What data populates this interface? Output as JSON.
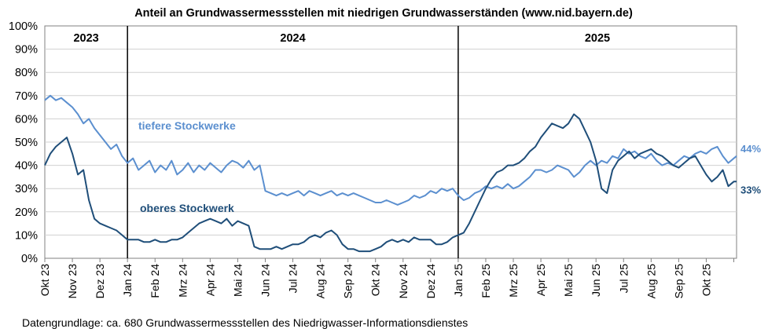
{
  "chart_data": {
    "type": "line",
    "title": "Anteil an Grundwassermessstellen mit niedrigen Grundwasserständen (www.nid.bayern.de)",
    "source": "Datengrundlage: ca. 680 Grundwassermessstellen des Niedrigwasser-Informationsdienstes",
    "xlabel": "",
    "ylabel": "",
    "ylim": [
      0,
      100
    ],
    "y_ticks": [
      "0%",
      "10%",
      "20%",
      "30%",
      "40%",
      "50%",
      "60%",
      "70%",
      "80%",
      "90%",
      "100%"
    ],
    "x_ticks": [
      "Okt 23",
      "Nov 23",
      "Dez 23",
      "Jan 24",
      "Feb 24",
      "Mrz 24",
      "Apr 24",
      "Mai 24",
      "Jun 24",
      "Jul 24",
      "Aug 24",
      "Sep 24",
      "Okt 24",
      "Nov 24",
      "Dez 24",
      "Jan 25",
      "Feb 25",
      "Mrz 25",
      "Apr 25",
      "Mai 25",
      "Jun 25",
      "Jul 25",
      "Aug 25",
      "Sep 25",
      "Okt 25"
    ],
    "x_range_months": [
      0,
      25.1
    ],
    "years": [
      {
        "label": "2023",
        "start": 0,
        "end": 3
      },
      {
        "label": "2024",
        "start": 3,
        "end": 15
      },
      {
        "label": "2025",
        "start": 15,
        "end": 25.1
      }
    ],
    "year_dividers": [
      3,
      15
    ],
    "series": [
      {
        "name": "tiefere Stockwerke",
        "color": "#5b8fcf",
        "end_label": "44%",
        "label_text": "tiefere Stockwerke",
        "x": [
          0,
          0.2,
          0.4,
          0.6,
          0.8,
          1.0,
          1.2,
          1.4,
          1.6,
          1.8,
          2.0,
          2.2,
          2.4,
          2.6,
          2.8,
          3.0,
          3.2,
          3.4,
          3.6,
          3.8,
          4.0,
          4.2,
          4.4,
          4.6,
          4.8,
          5.0,
          5.2,
          5.4,
          5.6,
          5.8,
          6.0,
          6.2,
          6.4,
          6.6,
          6.8,
          7.0,
          7.2,
          7.4,
          7.6,
          7.8,
          8.0,
          8.2,
          8.4,
          8.6,
          8.8,
          9.0,
          9.2,
          9.4,
          9.6,
          9.8,
          10.0,
          10.2,
          10.4,
          10.6,
          10.8,
          11.0,
          11.2,
          11.4,
          11.6,
          11.8,
          12.0,
          12.2,
          12.4,
          12.6,
          12.8,
          13.0,
          13.2,
          13.4,
          13.6,
          13.8,
          14.0,
          14.2,
          14.4,
          14.6,
          14.8,
          15.0,
          15.2,
          15.4,
          15.6,
          15.8,
          16.0,
          16.2,
          16.4,
          16.6,
          16.8,
          17.0,
          17.2,
          17.4,
          17.6,
          17.8,
          18.0,
          18.2,
          18.4,
          18.6,
          18.8,
          19.0,
          19.2,
          19.4,
          19.6,
          19.8,
          20.0,
          20.2,
          20.4,
          20.6,
          20.8,
          21.0,
          21.2,
          21.4,
          21.6,
          21.8,
          22.0,
          22.2,
          22.4,
          22.6,
          22.8,
          23.0,
          23.2,
          23.4,
          23.6,
          23.8,
          24.0,
          24.2,
          24.4,
          24.6,
          24.8,
          25.0,
          25.1
        ],
        "values": [
          68,
          70,
          68,
          69,
          67,
          65,
          62,
          58,
          60,
          56,
          53,
          50,
          47,
          49,
          44,
          41,
          43,
          38,
          40,
          42,
          37,
          40,
          38,
          42,
          36,
          38,
          41,
          37,
          40,
          38,
          41,
          39,
          37,
          40,
          42,
          41,
          39,
          42,
          38,
          40,
          29,
          28,
          27,
          28,
          27,
          28,
          29,
          27,
          29,
          28,
          27,
          28,
          29,
          27,
          28,
          27,
          28,
          27,
          26,
          25,
          24,
          24,
          25,
          24,
          23,
          24,
          25,
          27,
          26,
          27,
          29,
          28,
          30,
          29,
          30,
          27,
          25,
          26,
          28,
          29,
          31,
          30,
          31,
          30,
          32,
          30,
          31,
          33,
          35,
          38,
          38,
          37,
          38,
          40,
          39,
          38,
          35,
          37,
          40,
          42,
          40,
          42,
          41,
          44,
          43,
          47,
          45,
          46,
          44,
          43,
          45,
          42,
          40,
          41,
          40,
          42,
          44,
          43,
          45,
          46,
          45,
          47,
          48,
          44,
          41,
          43,
          44
        ]
      },
      {
        "name": "oberes Stockwerk",
        "color": "#1f4e79",
        "end_label": "33%",
        "label_text": "oberes Stockwerk",
        "x": [
          0,
          0.2,
          0.4,
          0.6,
          0.8,
          1.0,
          1.2,
          1.4,
          1.6,
          1.8,
          2.0,
          2.2,
          2.4,
          2.6,
          2.8,
          3.0,
          3.2,
          3.4,
          3.6,
          3.8,
          4.0,
          4.2,
          4.4,
          4.6,
          4.8,
          5.0,
          5.2,
          5.4,
          5.6,
          5.8,
          6.0,
          6.2,
          6.4,
          6.6,
          6.8,
          7.0,
          7.2,
          7.4,
          7.6,
          7.8,
          8.0,
          8.2,
          8.4,
          8.6,
          8.8,
          9.0,
          9.2,
          9.4,
          9.6,
          9.8,
          10.0,
          10.2,
          10.4,
          10.6,
          10.8,
          11.0,
          11.2,
          11.4,
          11.6,
          11.8,
          12.0,
          12.2,
          12.4,
          12.6,
          12.8,
          13.0,
          13.2,
          13.4,
          13.6,
          13.8,
          14.0,
          14.2,
          14.4,
          14.6,
          14.8,
          15.0,
          15.2,
          15.4,
          15.6,
          15.8,
          16.0,
          16.2,
          16.4,
          16.6,
          16.8,
          17.0,
          17.2,
          17.4,
          17.6,
          17.8,
          18.0,
          18.2,
          18.4,
          18.6,
          18.8,
          19.0,
          19.2,
          19.4,
          19.6,
          19.8,
          20.0,
          20.2,
          20.4,
          20.6,
          20.8,
          21.0,
          21.2,
          21.4,
          21.6,
          21.8,
          22.0,
          22.2,
          22.4,
          22.6,
          22.8,
          23.0,
          23.2,
          23.4,
          23.6,
          23.8,
          24.0,
          24.2,
          24.4,
          24.6,
          24.8,
          25.0,
          25.1
        ],
        "values": [
          40,
          45,
          48,
          50,
          52,
          45,
          36,
          38,
          25,
          17,
          15,
          14,
          13,
          12,
          10,
          8,
          8,
          8,
          7,
          7,
          8,
          7,
          7,
          8,
          8,
          9,
          11,
          13,
          15,
          16,
          17,
          16,
          15,
          17,
          14,
          16,
          15,
          14,
          5,
          4,
          4,
          4,
          5,
          4,
          5,
          6,
          6,
          7,
          9,
          10,
          9,
          11,
          12,
          10,
          6,
          4,
          4,
          3,
          3,
          3,
          4,
          5,
          7,
          8,
          7,
          8,
          7,
          9,
          8,
          8,
          8,
          6,
          6,
          7,
          9,
          10,
          11,
          15,
          20,
          25,
          30,
          34,
          37,
          38,
          40,
          40,
          41,
          43,
          46,
          48,
          52,
          55,
          58,
          57,
          56,
          58,
          62,
          60,
          55,
          50,
          42,
          30,
          28,
          38,
          42,
          44,
          46,
          43,
          45,
          46,
          47,
          45,
          44,
          42,
          40,
          39,
          41,
          43,
          44,
          40,
          36,
          33,
          35,
          38,
          31,
          33,
          33
        ]
      }
    ]
  }
}
